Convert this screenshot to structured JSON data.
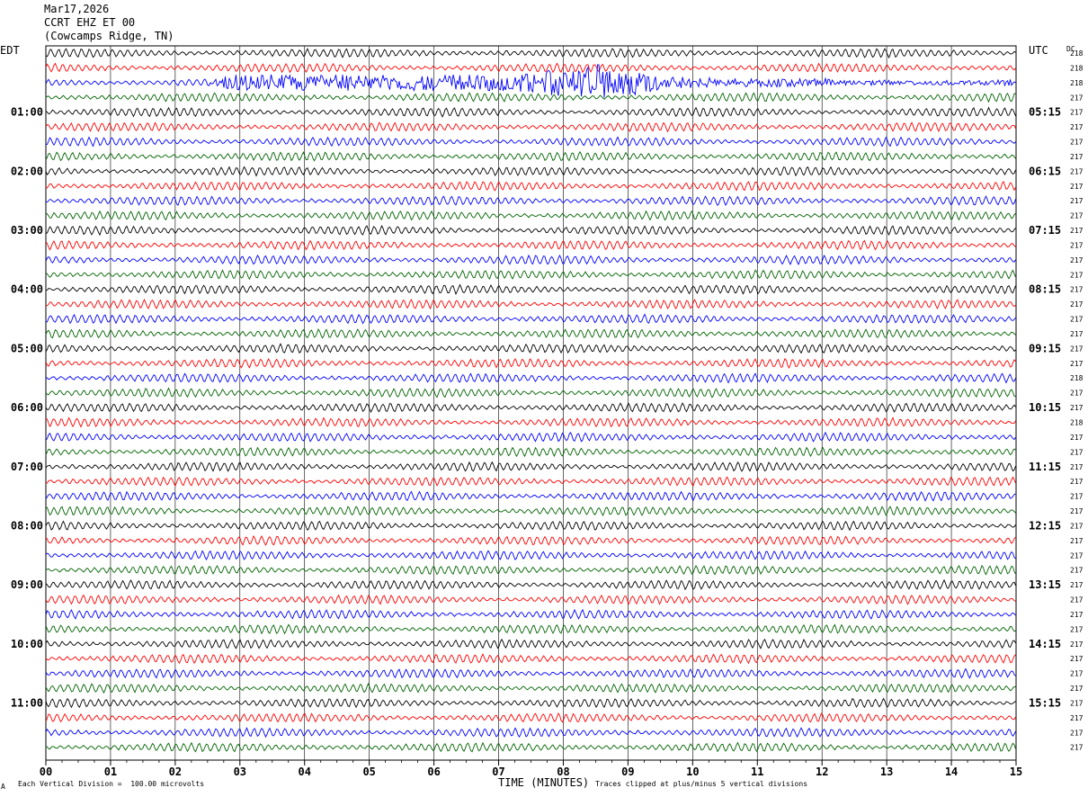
{
  "header": {
    "date": "Mar17,2026",
    "station": "CCRT EHZ ET 00",
    "location": "(Cowcamps Ridge, TN)"
  },
  "left_tz": "EDT",
  "right_tz": "UTC",
  "dc_label": "DC",
  "footer": {
    "left_mark": "A",
    "scale": "Each Vertical Division =  100.00 microvolts",
    "clip": "Traces clipped at plus/minus 5 vertical divisions"
  },
  "colors": {
    "trace_cycle": [
      "#000000",
      "#ff0000",
      "#0000ff",
      "#006400"
    ],
    "grid": "#000000"
  },
  "chart_data": {
    "type": "line",
    "title": "",
    "xlabel": "TIME (MINUTES)",
    "xlim": [
      0,
      15
    ],
    "x_tick_labels": [
      "00",
      "01",
      "02",
      "03",
      "04",
      "05",
      "06",
      "07",
      "08",
      "09",
      "10",
      "11",
      "12",
      "13",
      "14",
      "15"
    ],
    "left_hour_labels": [
      "01:00",
      "02:00",
      "03:00",
      "04:00",
      "05:00",
      "06:00",
      "07:00",
      "08:00",
      "09:00",
      "10:00",
      "11:00"
    ],
    "right_hour_labels": [
      "05:15",
      "06:15",
      "07:15",
      "08:15",
      "09:15",
      "10:15",
      "11:15",
      "12:15",
      "13:15",
      "14:15",
      "15:15"
    ],
    "dc_offsets": [
      "218",
      "218",
      "218",
      "217",
      "217",
      "217",
      "217",
      "217",
      "217",
      "217",
      "217",
      "217",
      "217",
      "217",
      "217",
      "217",
      "217",
      "217",
      "217",
      "217",
      "217",
      "217",
      "218",
      "217",
      "217",
      "218",
      "217",
      "217",
      "217",
      "217",
      "217",
      "217",
      "217",
      "217",
      "217",
      "217",
      "217",
      "217",
      "217",
      "217",
      "217",
      "217",
      "217",
      "217",
      "217",
      "217",
      "217",
      "217"
    ],
    "events": [
      {
        "trace": 2,
        "start_min": 2.55,
        "peak_min": 8.6,
        "end_min": 15,
        "amplitude_div": 5,
        "note": "large event, clipped"
      }
    ],
    "grid": true
  }
}
